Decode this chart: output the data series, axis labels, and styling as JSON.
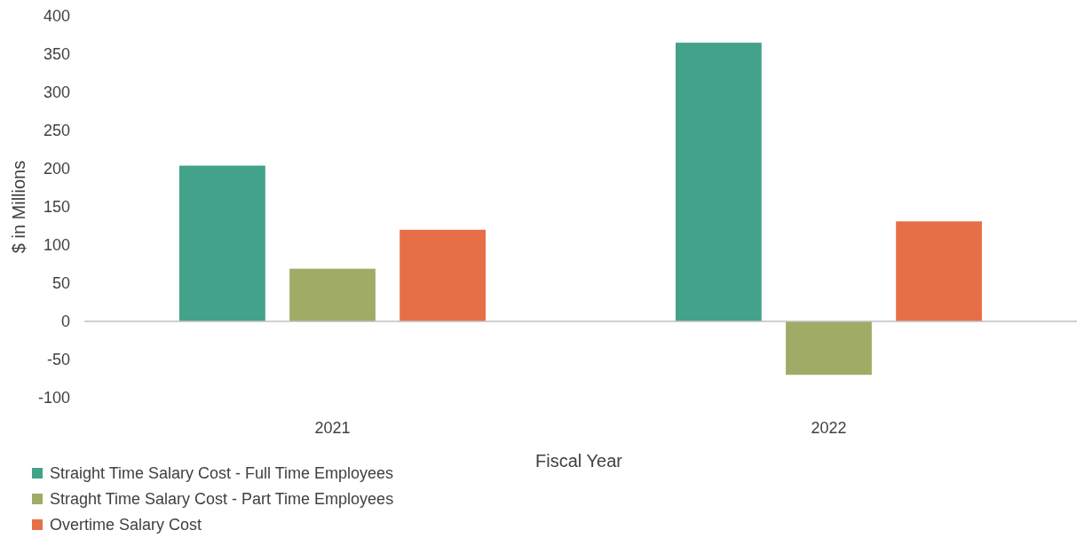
{
  "chart_data": {
    "type": "bar",
    "xlabel": "Fiscal Year",
    "ylabel": "$ in Millions",
    "categories": [
      "2021",
      "2022"
    ],
    "series": [
      {
        "name": "Straight Time Salary Cost - Full Time Employees",
        "color": "#43a28a",
        "values": [
          204,
          365
        ]
      },
      {
        "name": "Straght Time Salary Cost - Part Time Employees",
        "color": "#a0ab66",
        "values": [
          69,
          -70
        ]
      },
      {
        "name": "Overtime Salary Cost",
        "color": "#e76f47",
        "values": [
          120,
          131
        ]
      }
    ],
    "ylim": [
      -100,
      400
    ],
    "yticks": [
      -100,
      -50,
      0,
      50,
      100,
      150,
      200,
      250,
      300,
      350,
      400
    ],
    "legend": "bottom"
  }
}
